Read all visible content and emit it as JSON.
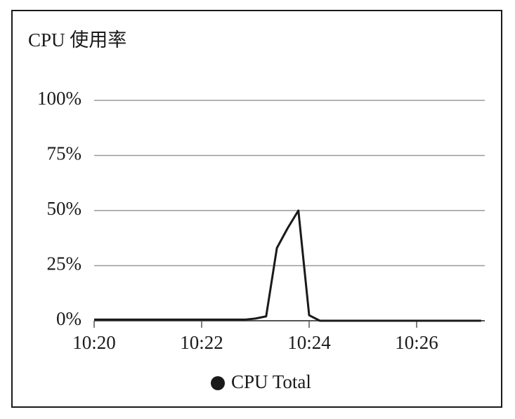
{
  "chart_data": {
    "type": "line",
    "title": "CPU 使用率",
    "categories": [
      "10:20",
      null,
      null,
      null,
      null,
      null,
      null,
      null,
      null,
      null,
      "10:22",
      null,
      null,
      null,
      null,
      null,
      null,
      null,
      null,
      null,
      "10:24",
      null,
      null,
      null,
      null,
      null,
      null,
      null,
      null,
      null,
      "10:26",
      null,
      null,
      null,
      null,
      null,
      null
    ],
    "series": [
      {
        "name": "CPU Total",
        "color": "#1a1a1a",
        "values": [
          0.5,
          0.5,
          0.5,
          0.5,
          0.5,
          0.5,
          0.5,
          0.5,
          0.5,
          0.5,
          0.5,
          0.5,
          0.5,
          0.5,
          0.5,
          1,
          2,
          33,
          42,
          50,
          2.5,
          0,
          0,
          0,
          0,
          0,
          0,
          0,
          0,
          0,
          0,
          0,
          0,
          0,
          0,
          0,
          0
        ]
      }
    ],
    "ylim": [
      0,
      100
    ],
    "yticks": [
      {
        "value": 0,
        "label": "0%"
      },
      {
        "value": 25,
        "label": "25%"
      },
      {
        "value": 50,
        "label": "50%"
      },
      {
        "value": 75,
        "label": "75%"
      },
      {
        "value": 100,
        "label": "100%"
      }
    ],
    "grid": true,
    "legend": "bottom"
  }
}
